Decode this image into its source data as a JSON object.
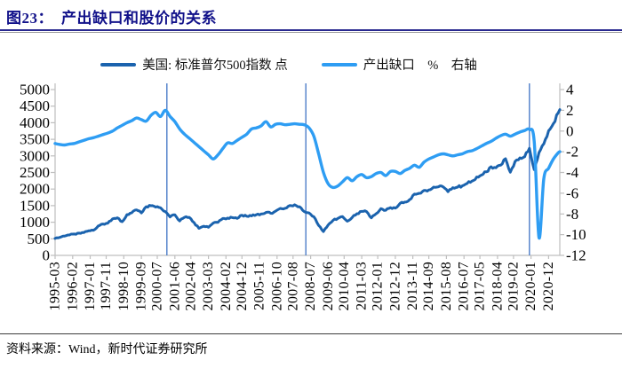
{
  "figure": {
    "title": "图23：　产出缺口和股价的关系",
    "source": "资料来源：Wind，新时代证券研究所"
  },
  "legend": [
    {
      "label": "美国: 标准普尔500指数 点",
      "color": "#1b63ae"
    },
    {
      "label": "产出缺口　%　右轴",
      "color": "#2e9df3"
    }
  ],
  "chart_data": {
    "type": "line",
    "title": "产出缺口和股价的关系",
    "x_start": "1995-03",
    "x_end": "2021-07",
    "months_total": 316,
    "grid": false,
    "x_tick_labels": [
      "1995-03",
      "1996-02",
      "1997-01",
      "1997-11",
      "1998-10",
      "1999-09",
      "2000-07",
      "2001-06",
      "2002-04",
      "2003-03",
      "2004-02",
      "2004-12",
      "2005-11",
      "2006-10",
      "2007-08",
      "2008-07",
      "2009-06",
      "2010-04",
      "2011-03",
      "2012-01",
      "2012-12",
      "2013-11",
      "2014-09",
      "2015-08",
      "2016-07",
      "2017-05",
      "2018-04",
      "2019-02",
      "2020-01",
      "2020-12"
    ],
    "left_axis": {
      "min": 0,
      "max": 5000,
      "step": 500,
      "ticks": [
        0,
        500,
        1000,
        1500,
        2000,
        2500,
        3000,
        3500,
        4000,
        4500,
        5000
      ],
      "unit": "点"
    },
    "right_axis": {
      "min": -12,
      "max": 4,
      "step": 2,
      "ticks": [
        -12,
        -10,
        -8,
        -6,
        -4,
        -2,
        0,
        2,
        4
      ],
      "unit": "%"
    },
    "event_lines": {
      "color": "#4d7dc8",
      "dates": [
        "2001-01",
        "2008-04",
        "2019-12"
      ]
    },
    "sampling": "quarterly from 1995-03 (last point 2021-07)",
    "series": [
      {
        "name": "美国: 标准普尔500指数 点",
        "axis": "left",
        "color": "#1b63ae",
        "values": [
          510,
          544,
          584,
          615,
          645,
          670,
          687,
          740,
          757,
          885,
          947,
          970,
          1101,
          1133,
          1017,
          1229,
          1286,
          1372,
          1282,
          1469,
          1498,
          1454,
          1436,
          1320,
          1160,
          1224,
          1040,
          1148,
          1147,
          989,
          815,
          879,
          848,
          974,
          995,
          1112,
          1126,
          1140,
          1114,
          1212,
          1180,
          1191,
          1228,
          1248,
          1294,
          1270,
          1335,
          1418,
          1420,
          1503,
          1526,
          1468,
          1322,
          1280,
          1166,
          903,
          720,
          919,
          1057,
          1115,
          1169,
          1030,
          1141,
          1258,
          1325,
          1320,
          1131,
          1258,
          1408,
          1362,
          1441,
          1426,
          1569,
          1606,
          1682,
          1848,
          1872,
          1960,
          1972,
          2059,
          2068,
          2063,
          1920,
          2044,
          2060,
          2099,
          2168,
          2239,
          2363,
          2423,
          2519,
          2674,
          2641,
          2718,
          2914,
          2507,
          2834,
          2942,
          2977,
          3231,
          2585,
          3100,
          3363,
          3756,
          3973,
          4298,
          4395
        ]
      },
      {
        "name": "产出缺口 % 右轴",
        "axis": "right",
        "color": "#2e9df3",
        "values": [
          -1.2,
          -1.3,
          -1.35,
          -1.25,
          -1.2,
          -1.05,
          -0.9,
          -0.75,
          -0.65,
          -0.5,
          -0.35,
          -0.2,
          0,
          0.3,
          0.55,
          0.8,
          1.0,
          1.25,
          1.1,
          0.95,
          1.5,
          1.8,
          1.4,
          2.0,
          1.4,
          0.9,
          0.2,
          -0.3,
          -0.7,
          -1.1,
          -1.5,
          -1.9,
          -2.3,
          -2.7,
          -2.3,
          -1.7,
          -1.15,
          -1.2,
          -0.9,
          -0.6,
          -0.3,
          0.2,
          0.3,
          0.5,
          0.9,
          0.4,
          0.65,
          0.7,
          0.6,
          0.65,
          0.7,
          0.65,
          0.6,
          0.3,
          -0.5,
          -2.2,
          -4.0,
          -5.1,
          -5.45,
          -5.3,
          -4.9,
          -4.5,
          -4.8,
          -4.4,
          -4.2,
          -4.5,
          -4.4,
          -4.1,
          -4.0,
          -4.3,
          -3.9,
          -3.9,
          -4.1,
          -3.8,
          -3.6,
          -3.3,
          -3.5,
          -3.0,
          -2.7,
          -2.5,
          -2.3,
          -2.2,
          -2.3,
          -2.4,
          -2.3,
          -2.2,
          -2.0,
          -1.9,
          -1.7,
          -1.45,
          -1.2,
          -1.0,
          -0.7,
          -0.45,
          -0.3,
          -0.5,
          -0.3,
          -0.1,
          0.05,
          0.15,
          -1.0,
          -10.3,
          -4.6,
          -3.6,
          -2.7,
          -2.1,
          -2.0
        ]
      }
    ]
  }
}
